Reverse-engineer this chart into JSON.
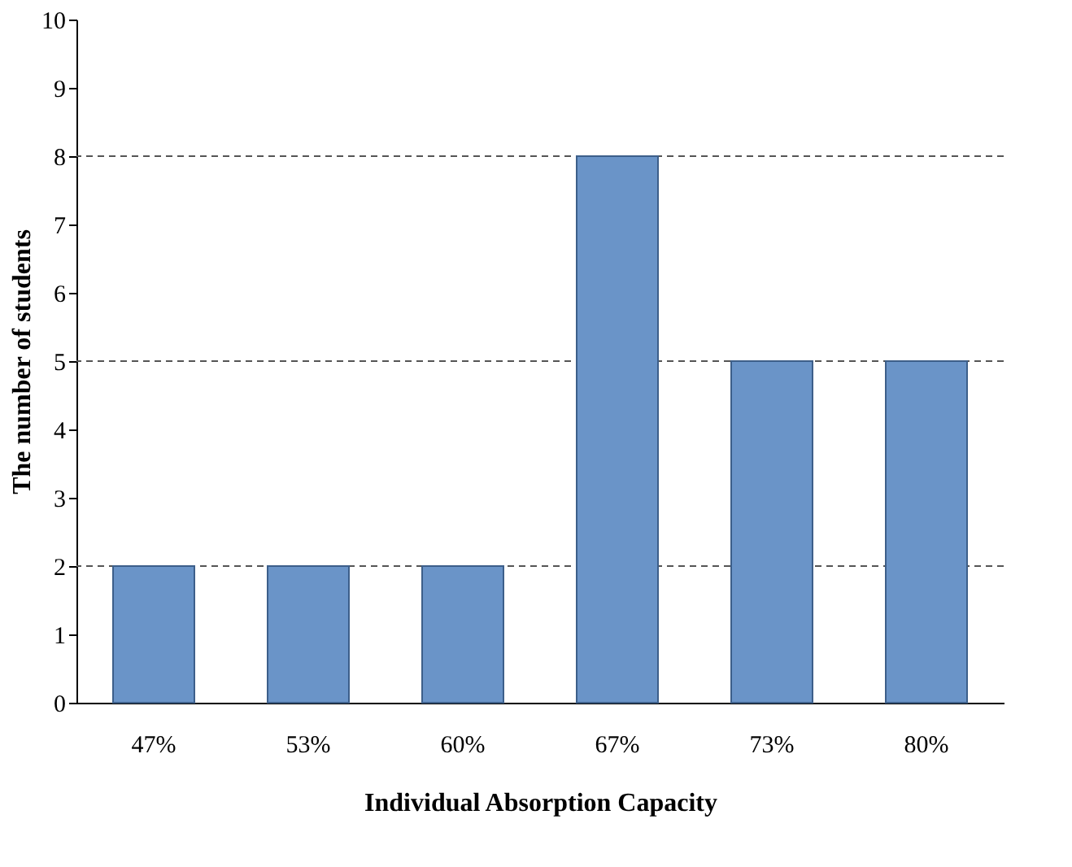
{
  "chart_data": {
    "type": "bar",
    "xlabel": "Individual Absorption Capacity",
    "ylabel": "The number of students",
    "categories": [
      "47%",
      "53%",
      "60%",
      "67%",
      "73%",
      "80%"
    ],
    "values": [
      2,
      2,
      2,
      8,
      5,
      5
    ],
    "color": "#6a94c8",
    "ylim": [
      0,
      10
    ],
    "yticks": [
      0,
      1,
      2,
      3,
      4,
      5,
      6,
      7,
      8,
      9,
      10
    ],
    "grid": false,
    "ref_lines": [
      {
        "axis": "y",
        "value": 2,
        "line_style": "dashed",
        "color": "#555555"
      },
      {
        "axis": "y",
        "value": 5,
        "line_style": "dashed",
        "color": "#555555"
      },
      {
        "axis": "y",
        "value": 8,
        "line_style": "dashed",
        "color": "#555555"
      }
    ]
  }
}
